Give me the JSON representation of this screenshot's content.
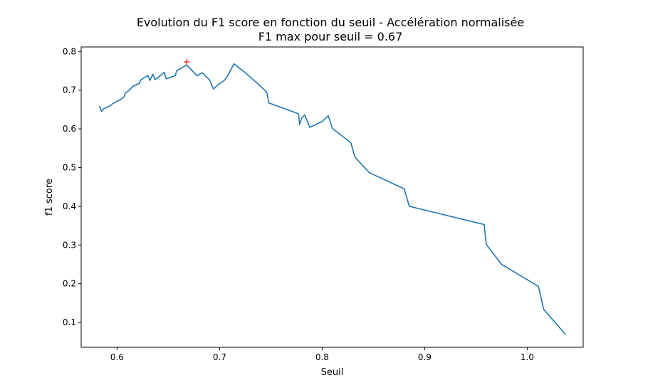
{
  "chart_data": {
    "type": "line",
    "title": "Evolution du F1 score en fonction du seuil - Accélération normalisée",
    "subtitle": "F1 max pour seuil = 0.67",
    "xlabel": "Seuil",
    "ylabel": "f1 score",
    "xlim": [
      0.565,
      1.0546
    ],
    "ylim": [
      0.0358,
      0.8115
    ],
    "x_ticks": [
      0.6,
      0.7,
      0.8,
      0.9,
      1.0
    ],
    "x_tick_labels": [
      "0.6",
      "0.7",
      "0.8",
      "0.9",
      "1.0"
    ],
    "y_ticks": [
      0.1,
      0.2,
      0.3,
      0.4,
      0.5,
      0.6,
      0.7,
      0.8
    ],
    "y_tick_labels": [
      "0.1",
      "0.2",
      "0.3",
      "0.4",
      "0.5",
      "0.6",
      "0.7",
      "0.8"
    ],
    "grid": false,
    "series": [
      {
        "color": "#1f77b4",
        "x": [
          0.583,
          0.585,
          0.587,
          0.592,
          0.597,
          0.603,
          0.607,
          0.608,
          0.612,
          0.615,
          0.622,
          0.623,
          0.63,
          0.632,
          0.635,
          0.637,
          0.642,
          0.646,
          0.648,
          0.657,
          0.658,
          0.668,
          0.672,
          0.678,
          0.683,
          0.69,
          0.694,
          0.698,
          0.705,
          0.708,
          0.711,
          0.714,
          0.725,
          0.735,
          0.746,
          0.748,
          0.777,
          0.778,
          0.78,
          0.783,
          0.788,
          0.8,
          0.806,
          0.81,
          0.828,
          0.832,
          0.846,
          0.88,
          0.885,
          0.958,
          0.96,
          0.975,
          1.011,
          1.016,
          1.037
        ],
        "y": [
          0.658,
          0.645,
          0.652,
          0.658,
          0.667,
          0.675,
          0.683,
          0.692,
          0.7,
          0.709,
          0.718,
          0.726,
          0.738,
          0.725,
          0.741,
          0.727,
          0.737,
          0.746,
          0.729,
          0.738,
          0.75,
          0.765,
          0.754,
          0.737,
          0.745,
          0.727,
          0.703,
          0.713,
          0.726,
          0.738,
          0.753,
          0.768,
          0.745,
          0.722,
          0.695,
          0.667,
          0.639,
          0.611,
          0.628,
          0.636,
          0.604,
          0.619,
          0.634,
          0.601,
          0.564,
          0.527,
          0.487,
          0.445,
          0.4,
          0.353,
          0.302,
          0.25,
          0.193,
          0.134,
          0.07
        ]
      }
    ],
    "max_marker": {
      "x": 0.668,
      "y": 0.773,
      "symbol": "+",
      "color": "#ff0000"
    }
  }
}
